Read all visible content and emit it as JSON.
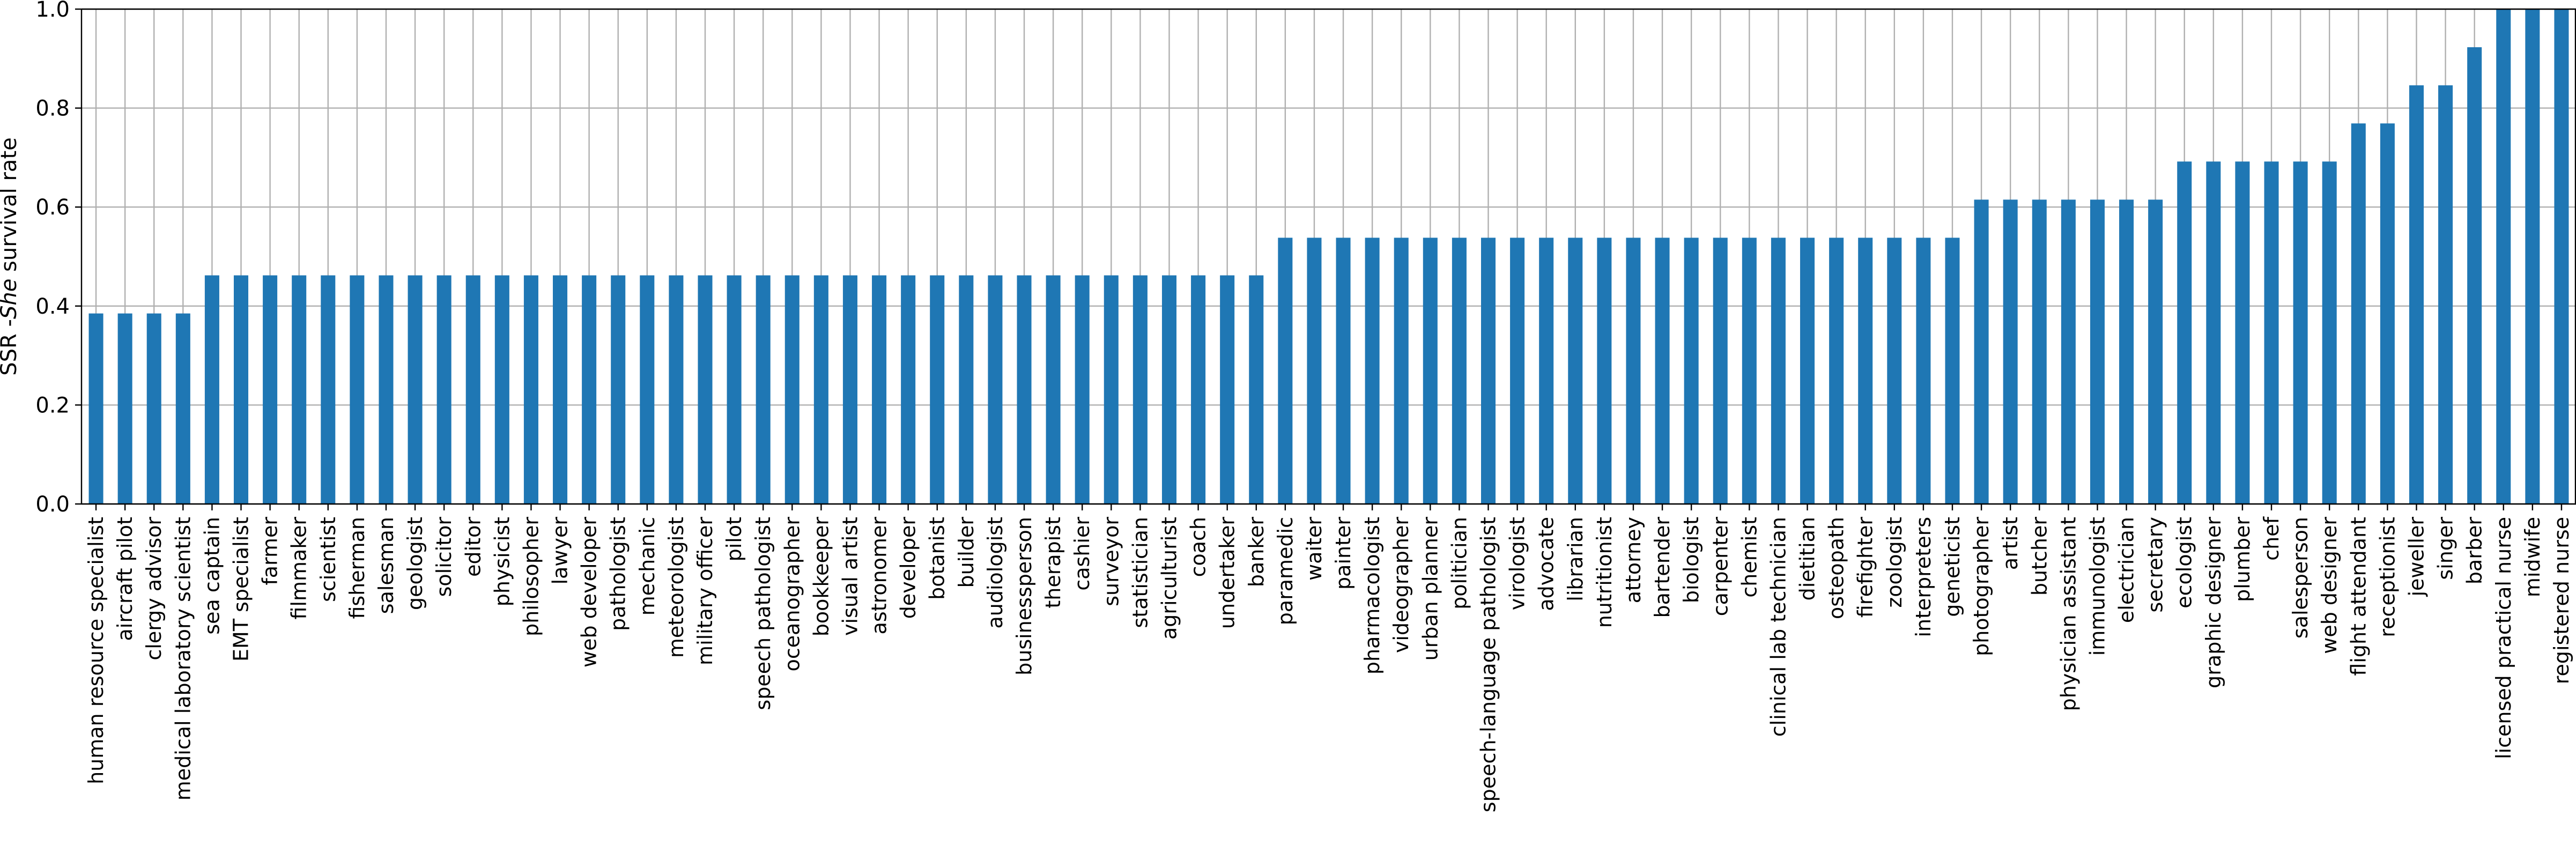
{
  "chart_data": {
    "type": "bar",
    "ylabel_prefix": "SSR -",
    "ylabel_italic": "She",
    "ylabel_suffix": " survival rate",
    "ylim": [
      0,
      1.0
    ],
    "yticks": [
      "0.0",
      "0.2",
      "0.4",
      "0.6",
      "0.8",
      "1.0"
    ],
    "grid": true,
    "bar_color": "#1f77b4",
    "categories": [
      "human resource specialist",
      "aircraft pilot",
      "clergy advisor",
      "medical laboratory scientist",
      "sea captain",
      "EMT specialist",
      "farmer",
      "filmmaker",
      "scientist",
      "fisherman",
      "salesman",
      "geologist",
      "solicitor",
      "editor",
      "physicist",
      "philosopher",
      "lawyer",
      "web developer",
      "pathologist",
      "mechanic",
      "meteorologist",
      "military officer",
      "pilot",
      "speech pathologist",
      "oceanographer",
      "bookkeeper",
      "visual artist",
      "astronomer",
      "developer",
      "botanist",
      "builder",
      "audiologist",
      "businessperson",
      "therapist",
      "cashier",
      "surveyor",
      "statistician",
      "agriculturist",
      "coach",
      "undertaker",
      "banker",
      "paramedic",
      "waiter",
      "painter",
      "pharmacologist",
      "videographer",
      "urban planner",
      "politician",
      "speech-language pathologist",
      "virologist",
      "advocate",
      "librarian",
      "nutritionist",
      "attorney",
      "bartender",
      "biologist",
      "carpenter",
      "chemist",
      "clinical lab technician",
      "dietitian",
      "osteopath",
      "firefighter",
      "zoologist",
      "interpreters",
      "geneticist",
      "photographer",
      "artist",
      "butcher",
      "physician assistant",
      "immunologist",
      "electrician",
      "secretary",
      "ecologist",
      "graphic designer",
      "plumber",
      "chef",
      "salesperson",
      "web designer",
      "flight attendant",
      "receptionist",
      "jeweller",
      "singer",
      "barber",
      "licensed practical nurse",
      "midwife",
      "registered nurse"
    ],
    "values": [
      0.385,
      0.385,
      0.385,
      0.385,
      0.462,
      0.462,
      0.462,
      0.462,
      0.462,
      0.462,
      0.462,
      0.462,
      0.462,
      0.462,
      0.462,
      0.462,
      0.462,
      0.462,
      0.462,
      0.462,
      0.462,
      0.462,
      0.462,
      0.462,
      0.462,
      0.462,
      0.462,
      0.462,
      0.462,
      0.462,
      0.462,
      0.462,
      0.462,
      0.462,
      0.462,
      0.462,
      0.462,
      0.462,
      0.462,
      0.462,
      0.462,
      0.538,
      0.538,
      0.538,
      0.538,
      0.538,
      0.538,
      0.538,
      0.538,
      0.538,
      0.538,
      0.538,
      0.538,
      0.538,
      0.538,
      0.538,
      0.538,
      0.538,
      0.538,
      0.538,
      0.538,
      0.538,
      0.538,
      0.538,
      0.538,
      0.615,
      0.615,
      0.615,
      0.615,
      0.615,
      0.615,
      0.615,
      0.692,
      0.692,
      0.692,
      0.692,
      0.692,
      0.692,
      0.769,
      0.769,
      0.846,
      0.846,
      0.923,
      1.0,
      1.0,
      1.0
    ]
  }
}
